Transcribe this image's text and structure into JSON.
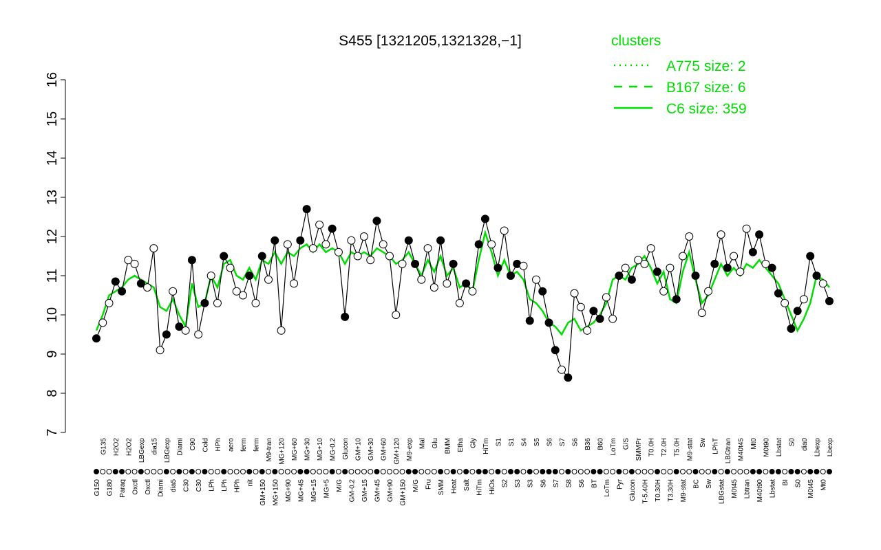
{
  "chart_data": {
    "type": "line",
    "title": "S455 [1321205,1321328,−1]",
    "ylim": [
      7,
      16
    ],
    "yticks": [
      7,
      8,
      9,
      10,
      11,
      12,
      13,
      14,
      15,
      16
    ],
    "legend_title": "clusters",
    "legend_color": "#00dd00",
    "legend": [
      {
        "name": "A775 size: 2",
        "dash": "2,6"
      },
      {
        "name": "B167 size: 6",
        "dash": "12,10"
      },
      {
        "name": "C6 size: 359",
        "dash": "none"
      }
    ],
    "categories": [
      "G150",
      "G135",
      "G180",
      "H2O2",
      "Paraq",
      "H2O2",
      "Oxctl",
      "LBGexp",
      "Oxctl",
      "dia15",
      "Diami",
      "LBGexp",
      "dia5",
      "Diami",
      "C30",
      "C90",
      "C30",
      "Cold",
      "LPh",
      "HPh",
      "LPh",
      "aero",
      "HPh",
      "ferm",
      "nit",
      "ferm",
      "GM+150",
      "M9-tran",
      "MG+150",
      "MG+120",
      "MG+90",
      "MG+60",
      "MG+45",
      "MG+30",
      "MG+15",
      "MG+10",
      "MG+5",
      "MG-0.2",
      "M/G",
      "Glucon",
      "GM-0.2",
      "GM+10",
      "GM+15",
      "GM+30",
      "GM+45",
      "GM+60",
      "GM+90",
      "GM+120",
      "GM+150",
      "M9-exp",
      "M/G",
      "Mal",
      "Fru",
      "Glu",
      "SMM",
      "BMM",
      "Heat",
      "Etha",
      "Salt",
      "Gly",
      "HiTm",
      "HiTm",
      "HiOs",
      "S1",
      "S2",
      "S1",
      "S3",
      "S4",
      "S3",
      "S5",
      "S6",
      "S6",
      "S7",
      "S7",
      "S8",
      "S6",
      "S6",
      "B36",
      "BT",
      "B60",
      "LoTm",
      "LoTm",
      "Pyr",
      "G/S",
      "Glucon",
      "SMMPr",
      "T-5.40H",
      "T0.0H",
      "T0.30H",
      "T2.0H",
      "T3.30H",
      "T5.0H",
      "M9-stat",
      "M9-stat",
      "BC",
      "Sw",
      "Sw",
      "LPhT",
      "LBGstat",
      "LBGtran",
      "M0t45",
      "M40t45",
      "Lbtran",
      "Mt0",
      "M40t90",
      "M0t90",
      "Lbstat",
      "Lbstat",
      "BI",
      "S0",
      "S0",
      "dia0",
      "M0t45",
      "Lbexp",
      "Mt0",
      "Lbexp"
    ],
    "series": [
      {
        "name": "points",
        "color": "#000000",
        "values": [
          9.4,
          9.8,
          10.3,
          10.85,
          10.6,
          11.4,
          11.3,
          10.8,
          10.7,
          11.7,
          9.1,
          9.5,
          10.6,
          9.7,
          9.6,
          11.4,
          9.5,
          10.3,
          11.0,
          10.3,
          11.5,
          11.2,
          10.6,
          10.5,
          11.0,
          10.3,
          11.5,
          10.9,
          11.9,
          9.6,
          11.8,
          10.8,
          11.9,
          12.7,
          11.7,
          12.3,
          11.8,
          12.2,
          11.6,
          9.95,
          11.9,
          11.5,
          12.0,
          11.4,
          12.4,
          11.8,
          11.5,
          10.0,
          11.3,
          11.9,
          11.3,
          10.9,
          11.7,
          10.7,
          11.9,
          10.8,
          11.3,
          10.3,
          10.8,
          10.6,
          11.8,
          12.45,
          11.8,
          11.2,
          12.15,
          11.0,
          11.3,
          11.25,
          9.85,
          10.9,
          10.6,
          9.8,
          9.1,
          8.6,
          8.4,
          10.55,
          10.2,
          9.6,
          10.1,
          9.9,
          10.45,
          9.9,
          11.0,
          11.2,
          10.9,
          11.4,
          11.3,
          11.7,
          11.1,
          10.6,
          11.2,
          10.4,
          11.5,
          12.0,
          11.0,
          10.05,
          10.6,
          11.3,
          12.05,
          11.2,
          11.5,
          11.1,
          12.2,
          11.6,
          12.05,
          11.3,
          11.2,
          10.55,
          10.3,
          9.65,
          10.1,
          10.4,
          11.5,
          11.0,
          10.8,
          10.35
        ],
        "fills": [
          "#000",
          "#fff",
          "#fff",
          "#000",
          "#000",
          "#fff",
          "#fff",
          "#000",
          "#fff",
          "#fff",
          "#fff",
          "#000",
          "#fff",
          "#000",
          "#fff",
          "#000",
          "#fff",
          "#000",
          "#fff",
          "#fff",
          "#000",
          "#fff",
          "#fff",
          "#fff",
          "#000",
          "#fff",
          "#000",
          "#fff",
          "#000",
          "#fff",
          "#fff",
          "#fff",
          "#000",
          "#000",
          "#fff",
          "#fff",
          "#fff",
          "#000",
          "#fff",
          "#000",
          "#fff",
          "#fff",
          "#fff",
          "#fff",
          "#000",
          "#fff",
          "#fff",
          "#fff",
          "#fff",
          "#000",
          "#000",
          "#fff",
          "#fff",
          "#fff",
          "#000",
          "#fff",
          "#000",
          "#fff",
          "#000",
          "#fff",
          "#000",
          "#000",
          "#fff",
          "#000",
          "#fff",
          "#000",
          "#000",
          "#fff",
          "#000",
          "#fff",
          "#000",
          "#000",
          "#000",
          "#fff",
          "#000",
          "#fff",
          "#fff",
          "#fff",
          "#000",
          "#000",
          "#fff",
          "#fff",
          "#000",
          "#fff",
          "#000",
          "#fff",
          "#fff",
          "#fff",
          "#000",
          "#fff",
          "#fff",
          "#000",
          "#fff",
          "#fff",
          "#000",
          "#fff",
          "#fff",
          "#000",
          "#fff",
          "#000",
          "#fff",
          "#fff",
          "#fff",
          "#000",
          "#000",
          "#fff",
          "#000",
          "#000",
          "#fff",
          "#000",
          "#000",
          "#fff",
          "#000",
          "#000",
          "#fff",
          "#000"
        ]
      },
      {
        "name": "C6 size: 359",
        "color": "#00dd00",
        "values": [
          9.6,
          10.0,
          10.5,
          10.6,
          10.7,
          10.9,
          11.0,
          10.9,
          10.8,
          10.7,
          10.2,
          10.1,
          10.4,
          10.0,
          9.7,
          10.8,
          10.2,
          10.3,
          11.0,
          10.7,
          11.3,
          11.4,
          11.0,
          10.9,
          11.2,
          10.9,
          11.4,
          11.3,
          11.6,
          11.3,
          11.6,
          11.5,
          11.7,
          11.8,
          11.6,
          11.8,
          11.6,
          11.7,
          11.6,
          11.3,
          11.6,
          11.5,
          11.6,
          11.5,
          11.7,
          11.6,
          11.5,
          11.3,
          11.4,
          11.6,
          11.3,
          11.0,
          11.4,
          11.1,
          11.5,
          11.0,
          11.2,
          10.7,
          10.8,
          10.6,
          11.4,
          12.1,
          11.6,
          11.0,
          11.4,
          11.0,
          11.1,
          10.9,
          10.4,
          10.3,
          10.1,
          9.8,
          9.7,
          9.5,
          9.8,
          9.9,
          9.6,
          9.7,
          9.8,
          10.0,
          10.3,
          10.9,
          11.0,
          10.9,
          11.2,
          11.3,
          11.5,
          11.2,
          10.8,
          11.1,
          10.4,
          10.3,
          11.1,
          11.6,
          10.9,
          10.3,
          10.5,
          10.9,
          11.3,
          11.0,
          11.2,
          11.0,
          11.3,
          11.2,
          11.4,
          11.2,
          11.0,
          10.8,
          10.4,
          10.0,
          9.6,
          9.9,
          10.3,
          11.0,
          10.9,
          10.7
        ]
      }
    ]
  }
}
